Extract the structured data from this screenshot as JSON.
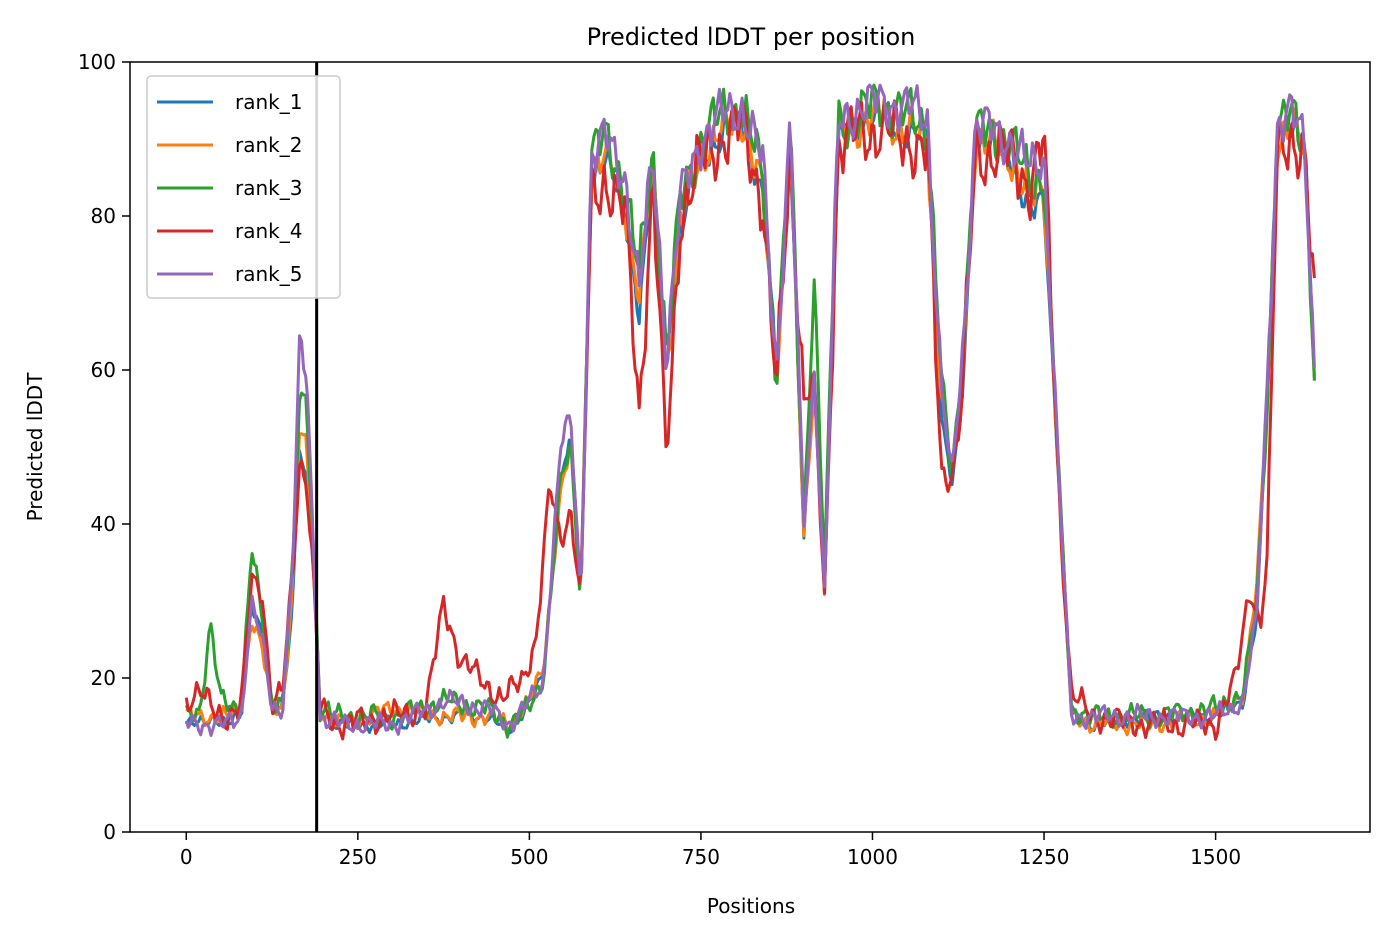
{
  "chart_data": {
    "type": "line",
    "title": "Predicted lDDT per position",
    "xlabel": "Positions",
    "ylabel": "Predicted lDDT",
    "xlim": [
      -82,
      1725
    ],
    "ylim": [
      0,
      100
    ],
    "xticks": [
      0,
      250,
      500,
      750,
      1000,
      1250,
      1500
    ],
    "yticks": [
      0,
      20,
      40,
      60,
      80,
      100
    ],
    "grid": false,
    "legend_position": "top-left",
    "vline_x": 190,
    "series": [
      {
        "name": "rank_1",
        "color": "#1f77b4",
        "offset": 0,
        "amp": 0.6,
        "x": [
          0,
          20,
          40,
          60,
          80,
          95,
          110,
          125,
          140,
          155,
          165,
          175,
          185,
          195,
          220,
          300,
          380,
          440,
          470,
          500,
          520,
          545,
          560,
          575,
          590,
          610,
          640,
          660,
          680,
          700,
          720,
          750,
          780,
          810,
          840,
          860,
          880,
          900,
          915,
          930,
          950,
          980,
          1010,
          1050,
          1080,
          1100,
          1115,
          1130,
          1150,
          1200,
          1230,
          1250,
          1275,
          1290,
          1320,
          1400,
          1500,
          1540,
          1560,
          1575,
          1590,
          1610,
          1630,
          1645
        ],
        "y": [
          14,
          14,
          15,
          14,
          15,
          30,
          26,
          16,
          16,
          30,
          50,
          45,
          35,
          16,
          14,
          14,
          15,
          15,
          13,
          17,
          20,
          45,
          52,
          30,
          85,
          88,
          80,
          68,
          85,
          62,
          78,
          88,
          90,
          93,
          82,
          60,
          90,
          38,
          60,
          32,
          90,
          92,
          93,
          91,
          90,
          55,
          45,
          55,
          90,
          88,
          80,
          82,
          40,
          15,
          14,
          15,
          15,
          17,
          28,
          55,
          90,
          92,
          88,
          58
        ]
      },
      {
        "name": "rank_2",
        "color": "#ff7f0e",
        "offset": 0.4,
        "amp": 0.8,
        "x": [
          0,
          20,
          40,
          60,
          80,
          95,
          110,
          125,
          140,
          155,
          165,
          175,
          185,
          195,
          220,
          300,
          380,
          440,
          470,
          500,
          520,
          545,
          560,
          575,
          590,
          610,
          640,
          660,
          680,
          700,
          720,
          750,
          780,
          810,
          840,
          860,
          880,
          900,
          915,
          930,
          950,
          980,
          1010,
          1050,
          1080,
          1100,
          1115,
          1130,
          1150,
          1200,
          1230,
          1250,
          1275,
          1290,
          1320,
          1400,
          1500,
          1540,
          1560,
          1575,
          1590,
          1610,
          1630,
          1645
        ],
        "y": [
          15,
          15,
          15,
          15,
          16,
          28,
          24,
          16,
          16,
          32,
          52,
          50,
          35,
          16,
          14,
          16,
          15,
          15,
          14,
          17,
          21,
          44,
          50,
          31,
          86,
          88,
          81,
          70,
          86,
          60,
          79,
          88,
          91,
          93,
          83,
          58,
          90,
          38,
          58,
          32,
          90,
          92,
          93,
          91,
          90,
          58,
          46,
          58,
          90,
          88,
          82,
          84,
          40,
          15,
          14,
          14,
          15,
          18,
          32,
          55,
          90,
          92,
          88,
          58
        ]
      },
      {
        "name": "rank_3",
        "color": "#2ca02c",
        "offset": 1.1,
        "amp": 1.0,
        "x": [
          0,
          20,
          35,
          50,
          80,
          95,
          110,
          125,
          140,
          155,
          165,
          175,
          185,
          195,
          220,
          300,
          380,
          440,
          470,
          500,
          520,
          545,
          560,
          575,
          590,
          610,
          640,
          660,
          680,
          700,
          720,
          750,
          780,
          810,
          840,
          860,
          880,
          900,
          915,
          930,
          950,
          980,
          1010,
          1050,
          1080,
          1100,
          1115,
          1130,
          1150,
          1200,
          1230,
          1250,
          1275,
          1290,
          1320,
          1400,
          1500,
          1540,
          1560,
          1575,
          1590,
          1610,
          1630,
          1645
        ],
        "y": [
          15,
          16,
          27,
          17,
          16,
          37,
          28,
          17,
          17,
          34,
          56,
          56,
          38,
          16,
          15,
          15,
          17,
          16,
          14,
          16,
          20,
          45,
          50,
          30,
          88,
          90,
          84,
          72,
          88,
          62,
          82,
          90,
          93,
          94,
          85,
          60,
          91,
          40,
          73,
          34,
          92,
          93,
          95,
          93,
          92,
          60,
          46,
          60,
          91,
          90,
          84,
          86,
          40,
          16,
          15,
          15,
          16,
          18,
          30,
          55,
          91,
          93,
          90,
          58
        ]
      },
      {
        "name": "rank_4",
        "color": "#d62728",
        "offset": 2.3,
        "amp": 1.2,
        "x": [
          0,
          20,
          40,
          60,
          80,
          95,
          110,
          125,
          140,
          155,
          165,
          175,
          185,
          195,
          220,
          300,
          350,
          375,
          400,
          430,
          460,
          490,
          510,
          530,
          545,
          560,
          575,
          590,
          610,
          640,
          660,
          680,
          700,
          720,
          750,
          780,
          810,
          840,
          860,
          880,
          900,
          915,
          930,
          950,
          980,
          1010,
          1050,
          1080,
          1100,
          1115,
          1130,
          1150,
          1200,
          1230,
          1250,
          1275,
          1290,
          1320,
          1400,
          1500,
          1530,
          1550,
          1565,
          1575,
          1590,
          1610,
          1630,
          1645
        ],
        "y": [
          17,
          18,
          16,
          15,
          16,
          33,
          32,
          16,
          18,
          34,
          48,
          46,
          33,
          16,
          14,
          15,
          16,
          30,
          22,
          20,
          17,
          20,
          25,
          45,
          38,
          42,
          30,
          82,
          85,
          80,
          55,
          84,
          48,
          80,
          87,
          90,
          92,
          82,
          57,
          88,
          56,
          58,
          30,
          89,
          91,
          91,
          90,
          88,
          47,
          46,
          55,
          88,
          88,
          84,
          90,
          38,
          18,
          15,
          14,
          14,
          20,
          32,
          27,
          35,
          88,
          91,
          87,
          67
        ]
      },
      {
        "name": "rank_5",
        "color": "#9467bd",
        "offset": 3.7,
        "amp": 0.9,
        "x": [
          0,
          20,
          40,
          60,
          80,
          95,
          110,
          125,
          140,
          155,
          165,
          175,
          185,
          195,
          220,
          300,
          380,
          440,
          470,
          500,
          520,
          545,
          560,
          575,
          590,
          610,
          640,
          660,
          680,
          700,
          720,
          750,
          780,
          810,
          840,
          860,
          880,
          900,
          915,
          930,
          950,
          980,
          1010,
          1050,
          1080,
          1100,
          1115,
          1130,
          1150,
          1200,
          1230,
          1250,
          1275,
          1290,
          1320,
          1400,
          1500,
          1540,
          1560,
          1575,
          1590,
          1610,
          1630,
          1645
        ],
        "y": [
          14,
          14,
          14,
          14,
          15,
          30,
          25,
          16,
          16,
          35,
          62,
          60,
          38,
          15,
          14,
          14,
          17,
          16,
          14,
          17,
          19,
          50,
          54,
          30,
          88,
          90,
          85,
          70,
          88,
          62,
          82,
          90,
          93,
          94,
          87,
          60,
          92,
          40,
          60,
          31,
          92,
          94,
          95,
          94,
          93,
          58,
          46,
          60,
          92,
          90,
          86,
          88,
          40,
          15,
          15,
          15,
          15,
          17,
          28,
          58,
          92,
          93,
          90,
          58
        ]
      }
    ]
  }
}
